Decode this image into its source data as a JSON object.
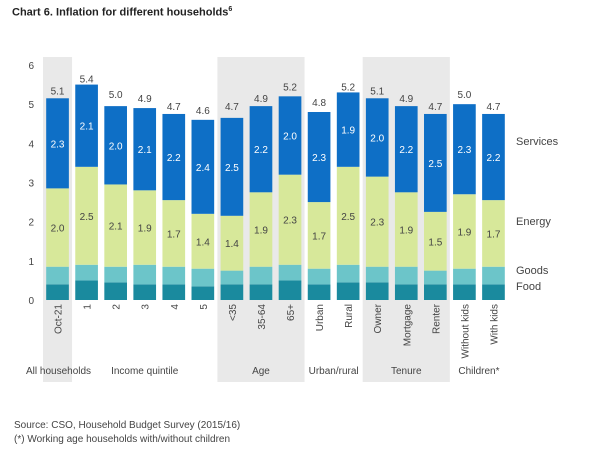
{
  "title": "Chart 6. Inflation for different households",
  "title_sup": "6",
  "source": "Source: CSO, Household Budget Survey (2015/16)",
  "footnote": "(*) Working age households with/without children",
  "chart_data": {
    "type": "bar",
    "stacked": true,
    "title": "Chart 6. Inflation for different households",
    "ylim": [
      0,
      6
    ],
    "yticks": [
      0,
      1,
      2,
      3,
      4,
      5,
      6
    ],
    "categories": [
      "Oct-21",
      "1",
      "2",
      "3",
      "4",
      "5",
      "<35",
      "35-64",
      "65+",
      "Urban",
      "Rural",
      "Owner",
      "Mortgage",
      "Renter",
      "Without kids",
      "With kids"
    ],
    "groups": [
      {
        "label": "All households",
        "start": 0,
        "end": 0
      },
      {
        "label": "Income quintile",
        "start": 1,
        "end": 5
      },
      {
        "label": "Age",
        "start": 6,
        "end": 8
      },
      {
        "label": "Urban/rural",
        "start": 9,
        "end": 10
      },
      {
        "label": "Tenure",
        "start": 11,
        "end": 13
      },
      {
        "label": "Children*",
        "start": 14,
        "end": 15
      }
    ],
    "totals": [
      "5.1",
      "5.4",
      "5.0",
      "4.9",
      "4.7",
      "4.6",
      "4.7",
      "4.9",
      "5.2",
      "4.8",
      "5.2",
      "5.1",
      "4.9",
      "4.7",
      "5.0",
      "4.7"
    ],
    "series": [
      {
        "name": "Food",
        "color": "#1a8a9e",
        "values": [
          0.4,
          0.5,
          0.45,
          0.4,
          0.4,
          0.35,
          0.4,
          0.4,
          0.5,
          0.4,
          0.45,
          0.45,
          0.4,
          0.4,
          0.4,
          0.4
        ]
      },
      {
        "name": "Goods",
        "color": "#6cc5c9",
        "values": [
          0.45,
          0.4,
          0.4,
          0.5,
          0.45,
          0.45,
          0.35,
          0.45,
          0.4,
          0.4,
          0.45,
          0.4,
          0.45,
          0.35,
          0.4,
          0.45
        ]
      },
      {
        "name": "Energy",
        "color": "#d7e89a",
        "values": [
          2.0,
          2.5,
          2.1,
          1.9,
          1.7,
          1.4,
          1.4,
          1.9,
          2.3,
          1.7,
          2.5,
          2.3,
          1.9,
          1.5,
          1.9,
          1.7
        ],
        "labels": [
          "2.0",
          "2.5",
          "2.1",
          "1.9",
          "1.7",
          "1.4",
          "1.4",
          "1.9",
          "2.3",
          "1.7",
          "2.5",
          "2.3",
          "1.9",
          "1.5",
          "1.9",
          "1.7"
        ]
      },
      {
        "name": "Services",
        "color": "#0e6fc6",
        "values": [
          2.3,
          2.1,
          2.0,
          2.1,
          2.2,
          2.4,
          2.5,
          2.2,
          2.0,
          2.3,
          1.9,
          2.0,
          2.2,
          2.5,
          2.3,
          2.2
        ],
        "labels": [
          "2.3",
          "2.1",
          "2.0",
          "2.1",
          "2.2",
          "2.4",
          "2.5",
          "2.2",
          "2.0",
          "2.3",
          "1.9",
          "2.0",
          "2.2",
          "2.5",
          "2.3",
          "2.2"
        ]
      }
    ],
    "legend_placement": "right",
    "grid": false,
    "band_color": "#e9e9e9"
  }
}
